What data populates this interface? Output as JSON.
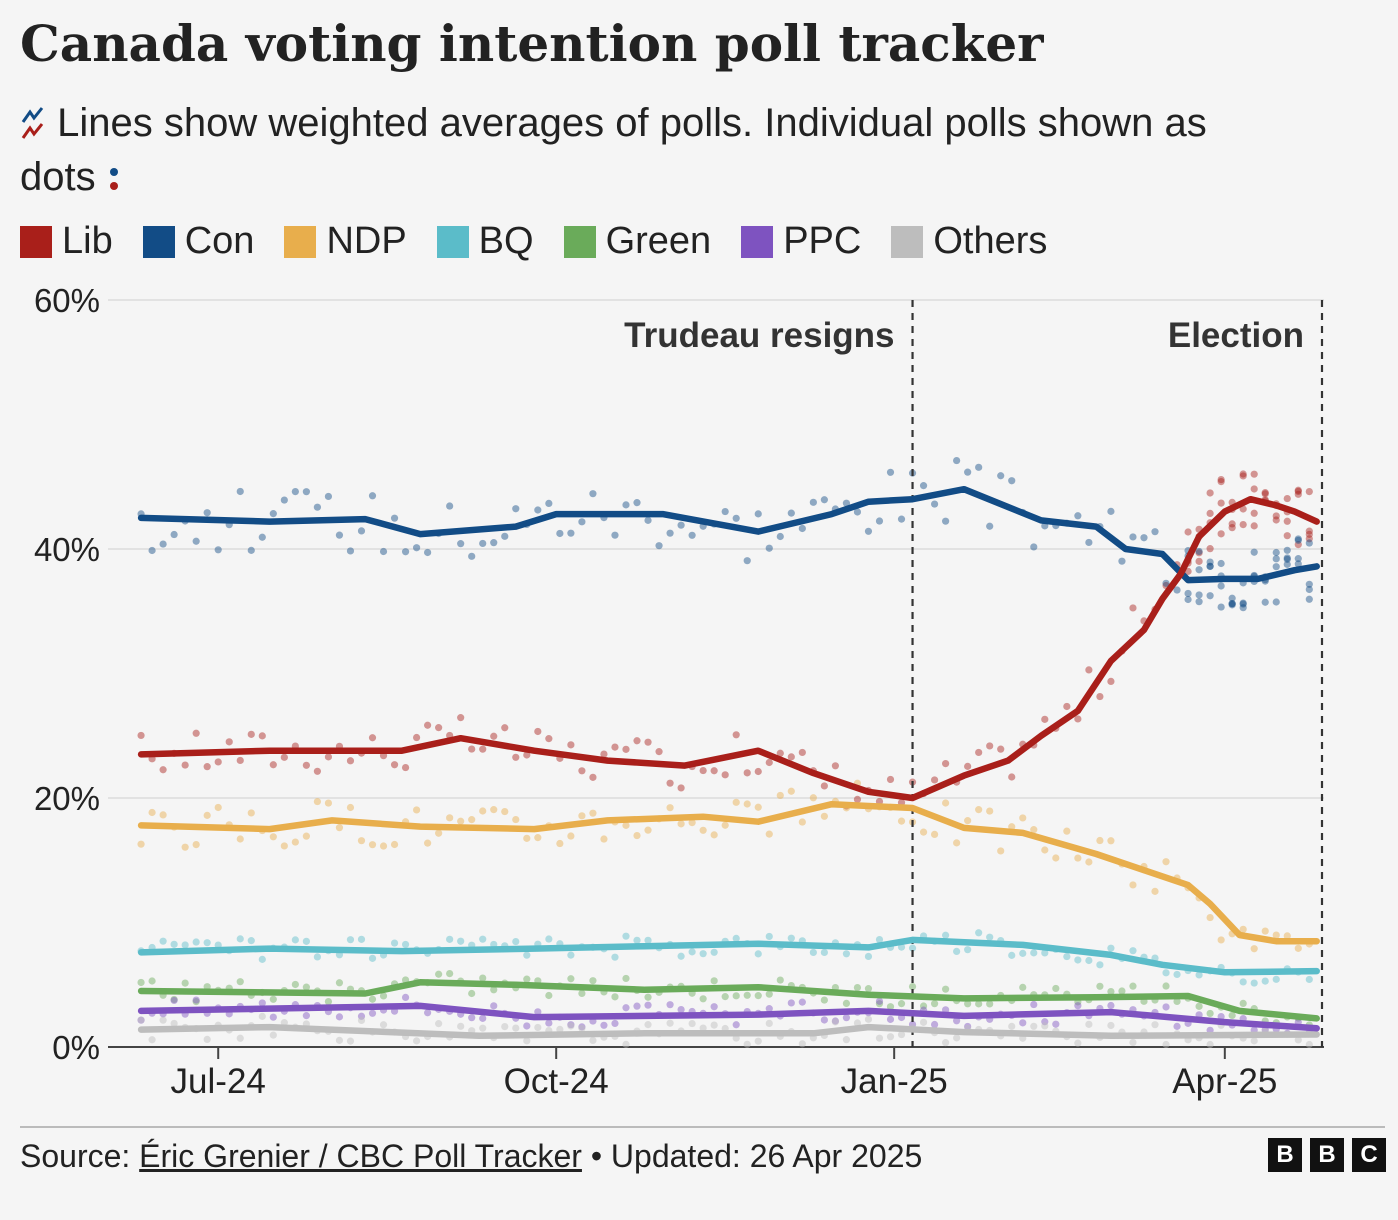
{
  "title": "Canada voting intention poll tracker",
  "subtitle_a": "Lines show weighted averages of polls. Individual polls shown as",
  "subtitle_b": "dots",
  "subtitle_c": ":",
  "legend": [
    {
      "label": "Lib",
      "color": "#a91f1a"
    },
    {
      "label": "Con",
      "color": "#124c86"
    },
    {
      "label": "NDP",
      "color": "#e8ae4c"
    },
    {
      "label": "BQ",
      "color": "#5bbcc9"
    },
    {
      "label": "Green",
      "color": "#6aab5a"
    },
    {
      "label": "PPC",
      "color": "#7e53c0"
    },
    {
      "label": "Others",
      "color": "#bdbdbd"
    }
  ],
  "footer": {
    "source_prefix": "Source: ",
    "source_link": "Éric Grenier / CBC Poll Tracker",
    "updated": " • Updated: 26 Apr 2025"
  },
  "logo": [
    "B",
    "B",
    "C"
  ],
  "chart_data": {
    "type": "line",
    "x_unit": "date",
    "xlim": [
      "2024-06-01",
      "2025-04-28"
    ],
    "ylim": [
      0,
      60
    ],
    "y_ticks": [
      0,
      20,
      40,
      60
    ],
    "y_tick_labels": [
      "0%",
      "20%",
      "40%",
      "60%"
    ],
    "x_ticks": [
      "2024-07-01",
      "2024-10-01",
      "2025-01-01",
      "2025-04-01"
    ],
    "x_tick_labels": [
      "Jul-24",
      "Oct-24",
      "Jan-25",
      "Apr-25"
    ],
    "grid": true,
    "legend_position": "top",
    "annotations": [
      {
        "label": "Trudeau resigns",
        "date": "2025-01-06"
      },
      {
        "label": "Election",
        "date": "2025-04-28"
      }
    ],
    "series": [
      {
        "name": "Lib",
        "color": "#a91f1a",
        "points": [
          [
            "2024-06-10",
            23.5
          ],
          [
            "2024-07-15",
            23.8
          ],
          [
            "2024-08-20",
            23.8
          ],
          [
            "2024-09-05",
            24.8
          ],
          [
            "2024-09-25",
            23.8
          ],
          [
            "2024-10-15",
            23.0
          ],
          [
            "2024-11-05",
            22.6
          ],
          [
            "2024-11-25",
            23.8
          ],
          [
            "2024-12-10",
            22.0
          ],
          [
            "2024-12-25",
            20.5
          ],
          [
            "2025-01-06",
            20.0
          ],
          [
            "2025-01-20",
            21.8
          ],
          [
            "2025-02-01",
            23.0
          ],
          [
            "2025-02-10",
            25.0
          ],
          [
            "2025-02-20",
            27.0
          ],
          [
            "2025-03-01",
            31.0
          ],
          [
            "2025-03-10",
            33.5
          ],
          [
            "2025-03-15",
            36.0
          ],
          [
            "2025-03-20",
            38.0
          ],
          [
            "2025-03-25",
            41.0
          ],
          [
            "2025-04-01",
            43.0
          ],
          [
            "2025-04-08",
            44.0
          ],
          [
            "2025-04-15",
            43.5
          ],
          [
            "2025-04-20",
            43.0
          ],
          [
            "2025-04-26",
            42.2
          ]
        ]
      },
      {
        "name": "Con",
        "color": "#124c86",
        "points": [
          [
            "2024-06-10",
            42.5
          ],
          [
            "2024-07-15",
            42.2
          ],
          [
            "2024-08-10",
            42.4
          ],
          [
            "2024-08-25",
            41.2
          ],
          [
            "2024-09-20",
            41.8
          ],
          [
            "2024-10-01",
            42.8
          ],
          [
            "2024-10-30",
            42.8
          ],
          [
            "2024-11-25",
            41.4
          ],
          [
            "2024-12-15",
            42.8
          ],
          [
            "2024-12-25",
            43.8
          ],
          [
            "2025-01-06",
            44.0
          ],
          [
            "2025-01-20",
            44.8
          ],
          [
            "2025-02-10",
            42.3
          ],
          [
            "2025-02-25",
            41.8
          ],
          [
            "2025-03-05",
            40.0
          ],
          [
            "2025-03-15",
            39.6
          ],
          [
            "2025-03-22",
            37.5
          ],
          [
            "2025-04-01",
            37.6
          ],
          [
            "2025-04-10",
            37.6
          ],
          [
            "2025-04-20",
            38.3
          ],
          [
            "2025-04-26",
            38.6
          ]
        ]
      },
      {
        "name": "NDP",
        "color": "#e8ae4c",
        "points": [
          [
            "2024-06-10",
            17.8
          ],
          [
            "2024-07-15",
            17.5
          ],
          [
            "2024-08-01",
            18.2
          ],
          [
            "2024-08-25",
            17.7
          ],
          [
            "2024-09-25",
            17.5
          ],
          [
            "2024-10-15",
            18.2
          ],
          [
            "2024-11-10",
            18.5
          ],
          [
            "2024-11-25",
            18.1
          ],
          [
            "2024-12-15",
            19.5
          ],
          [
            "2025-01-06",
            19.2
          ],
          [
            "2025-01-20",
            17.6
          ],
          [
            "2025-02-05",
            17.2
          ],
          [
            "2025-02-25",
            15.5
          ],
          [
            "2025-03-10",
            14.2
          ],
          [
            "2025-03-22",
            13.0
          ],
          [
            "2025-03-28",
            11.5
          ],
          [
            "2025-04-05",
            9.0
          ],
          [
            "2025-04-15",
            8.5
          ],
          [
            "2025-04-26",
            8.5
          ]
        ]
      },
      {
        "name": "BQ",
        "color": "#5bbcc9",
        "points": [
          [
            "2024-06-10",
            7.6
          ],
          [
            "2024-07-15",
            7.9
          ],
          [
            "2024-08-20",
            7.7
          ],
          [
            "2024-09-25",
            7.9
          ],
          [
            "2024-10-25",
            8.1
          ],
          [
            "2024-11-25",
            8.3
          ],
          [
            "2024-12-25",
            8.0
          ],
          [
            "2025-01-06",
            8.6
          ],
          [
            "2025-02-05",
            8.2
          ],
          [
            "2025-03-01",
            7.4
          ],
          [
            "2025-03-15",
            6.6
          ],
          [
            "2025-04-01",
            6.0
          ],
          [
            "2025-04-26",
            6.1
          ]
        ]
      },
      {
        "name": "Green",
        "color": "#6aab5a",
        "points": [
          [
            "2024-06-10",
            4.5
          ],
          [
            "2024-08-10",
            4.3
          ],
          [
            "2024-08-25",
            5.2
          ],
          [
            "2024-09-20",
            5.0
          ],
          [
            "2024-10-25",
            4.6
          ],
          [
            "2024-11-25",
            4.8
          ],
          [
            "2024-12-25",
            4.2
          ],
          [
            "2025-01-20",
            3.9
          ],
          [
            "2025-02-25",
            4.0
          ],
          [
            "2025-03-22",
            4.1
          ],
          [
            "2025-04-05",
            2.9
          ],
          [
            "2025-04-26",
            2.3
          ]
        ]
      },
      {
        "name": "PPC",
        "color": "#7e53c0",
        "points": [
          [
            "2024-06-10",
            2.9
          ],
          [
            "2024-08-25",
            3.3
          ],
          [
            "2024-09-25",
            2.4
          ],
          [
            "2024-11-25",
            2.6
          ],
          [
            "2024-12-25",
            2.9
          ],
          [
            "2025-01-20",
            2.5
          ],
          [
            "2025-03-01",
            2.8
          ],
          [
            "2025-04-01",
            2.0
          ],
          [
            "2025-04-26",
            1.5
          ]
        ]
      },
      {
        "name": "Others",
        "color": "#bdbdbd",
        "points": [
          [
            "2024-06-10",
            1.4
          ],
          [
            "2024-07-15",
            1.6
          ],
          [
            "2024-09-10",
            0.9
          ],
          [
            "2024-10-25",
            1.1
          ],
          [
            "2024-12-10",
            1.1
          ],
          [
            "2024-12-25",
            1.6
          ],
          [
            "2025-01-20",
            1.2
          ],
          [
            "2025-03-01",
            0.9
          ],
          [
            "2025-04-26",
            1.0
          ]
        ]
      }
    ]
  }
}
